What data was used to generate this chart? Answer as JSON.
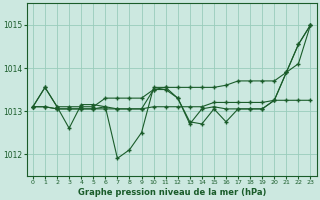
{
  "background_color": "#cce8e0",
  "grid_color": "#99ccbb",
  "line_color": "#1a5c2a",
  "xlabel": "Graphe pression niveau de la mer (hPa)",
  "xlim": [
    -0.5,
    23.5
  ],
  "ylim": [
    1011.5,
    1015.5
  ],
  "yticks": [
    1012,
    1013,
    1014,
    1015
  ],
  "xticks": [
    0,
    1,
    2,
    3,
    4,
    5,
    6,
    7,
    8,
    9,
    10,
    11,
    12,
    13,
    14,
    15,
    16,
    17,
    18,
    19,
    20,
    21,
    22,
    23
  ],
  "series1": [
    1013.1,
    1013.55,
    1013.1,
    1012.6,
    1013.15,
    1013.15,
    1013.1,
    1011.9,
    1012.1,
    1012.5,
    1013.55,
    1013.55,
    1013.3,
    1012.75,
    1012.7,
    1013.05,
    1012.75,
    1013.05,
    1013.05,
    1013.05,
    1013.25,
    1013.9,
    1014.55,
    1015.0
  ],
  "series2": [
    1013.1,
    1013.55,
    1013.1,
    1013.1,
    1013.1,
    1013.1,
    1013.3,
    1013.3,
    1013.3,
    1013.3,
    1013.5,
    1013.55,
    1013.55,
    1013.55,
    1013.55,
    1013.55,
    1013.6,
    1013.7,
    1013.7,
    1013.7,
    1013.7,
    1013.9,
    1014.1,
    1015.0
  ],
  "series3": [
    1013.1,
    1013.1,
    1013.05,
    1013.05,
    1013.05,
    1013.05,
    1013.05,
    1013.05,
    1013.05,
    1013.05,
    1013.1,
    1013.1,
    1013.1,
    1013.1,
    1013.1,
    1013.2,
    1013.2,
    1013.2,
    1013.2,
    1013.2,
    1013.25,
    1013.25,
    1013.25,
    1013.25
  ],
  "series4": [
    1013.1,
    1013.1,
    1013.05,
    1013.05,
    1013.05,
    1013.05,
    1013.1,
    1013.05,
    1013.05,
    1013.05,
    1013.5,
    1013.5,
    1013.3,
    1012.7,
    1013.05,
    1013.1,
    1013.05,
    1013.05,
    1013.05,
    1013.05,
    1013.25,
    1013.9,
    1014.55,
    1015.0
  ]
}
